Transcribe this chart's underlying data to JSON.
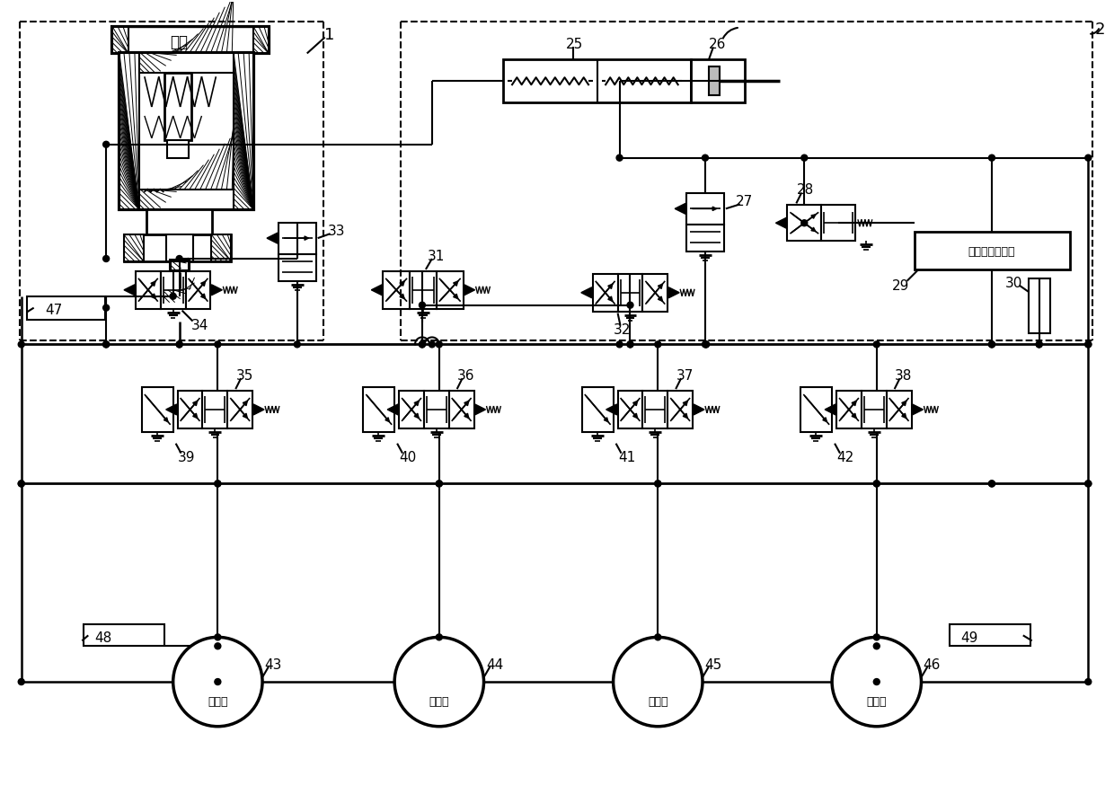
{
  "bg_color": "#ffffff",
  "line_color": "#000000",
  "labels": {
    "oil_cup": "油杯",
    "n1": "1",
    "n2": "2",
    "n25": "25",
    "n26": "26",
    "n27": "27",
    "n28": "28",
    "n29": "29",
    "n30": "30",
    "n31": "31",
    "n32": "32",
    "n33": "33",
    "n34": "34",
    "n35": "35",
    "n36": "36",
    "n37": "37",
    "n38": "38",
    "n39": "39",
    "n40": "40",
    "n41": "41",
    "n42": "42",
    "n43": "43",
    "n44": "44",
    "n45": "45",
    "n46": "46",
    "n47": "47",
    "n48": "48",
    "n49": "49",
    "pedal_sim": "踏板感觉模拟器",
    "left_front": "左前轮",
    "right_rear": "右后轮",
    "right_front": "右前轮",
    "left_rear": "左后轮"
  }
}
